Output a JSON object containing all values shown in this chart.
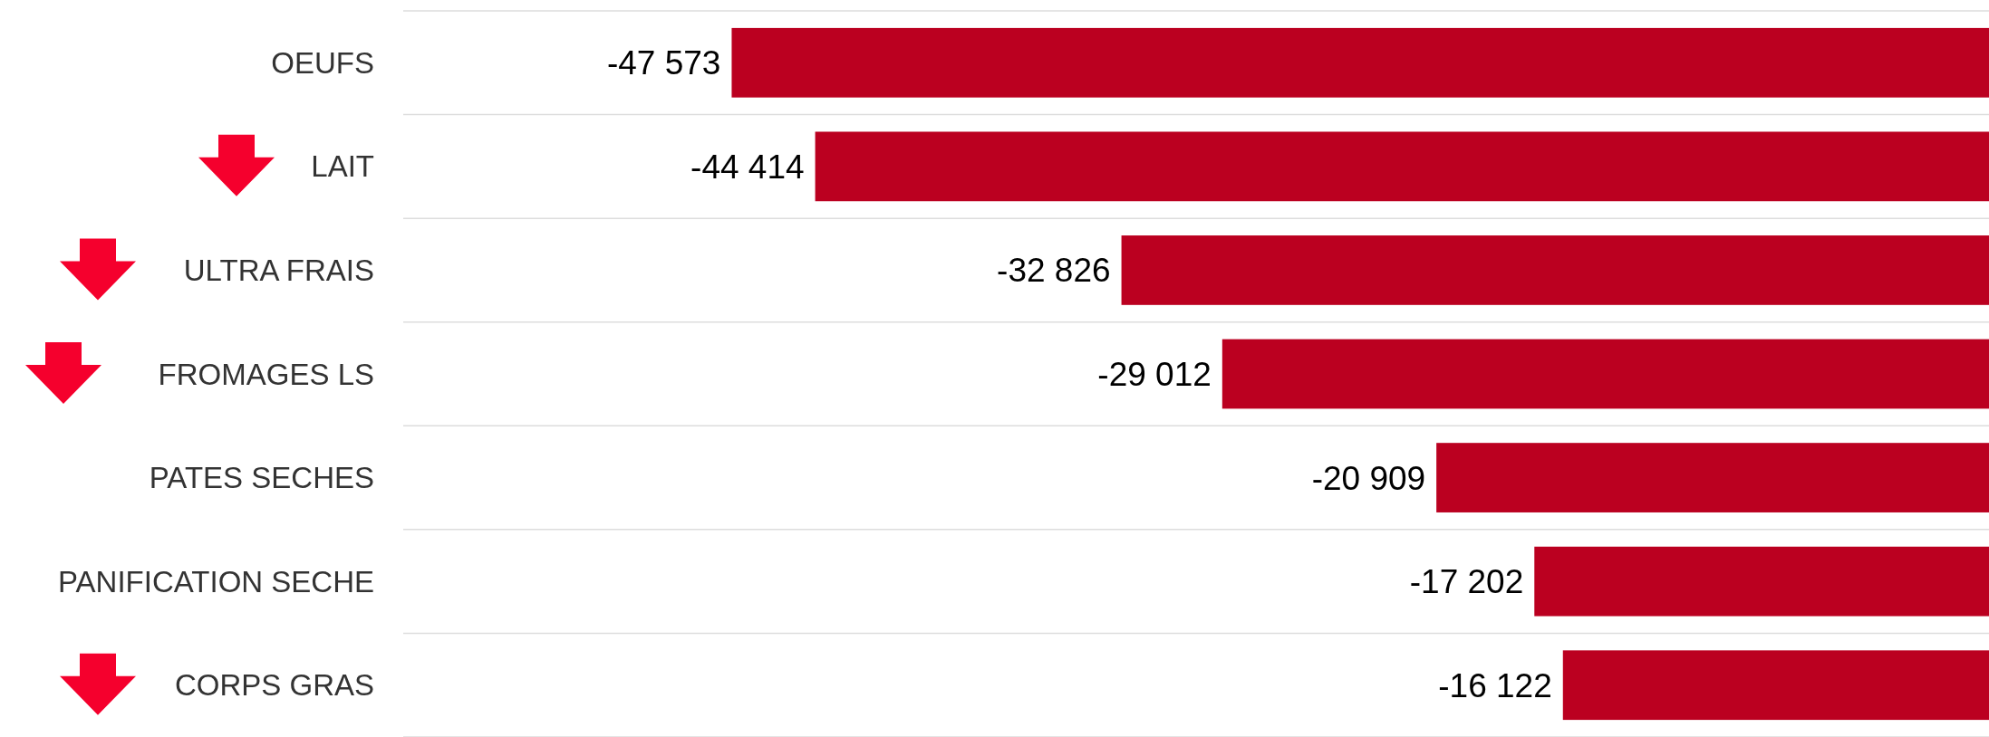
{
  "chart_data": {
    "type": "bar",
    "orientation": "horizontal",
    "categories": [
      "OEUFS",
      "LAIT",
      "ULTRA FRAIS",
      "FROMAGES LS",
      "PATES SECHES",
      "PANIFICATION SECHE",
      "CORPS GRAS"
    ],
    "values": [
      -47573,
      -44414,
      -32826,
      -29012,
      -20909,
      -17202,
      -16122
    ],
    "value_labels": [
      "-47 573",
      "-44 414",
      "-32 826",
      "-29 012",
      "-20 909",
      "-17 202",
      "-16 122"
    ],
    "color": "#bb0020",
    "xlim": [
      -60000,
      0
    ],
    "grid": "y",
    "tick_labels": "y"
  }
}
